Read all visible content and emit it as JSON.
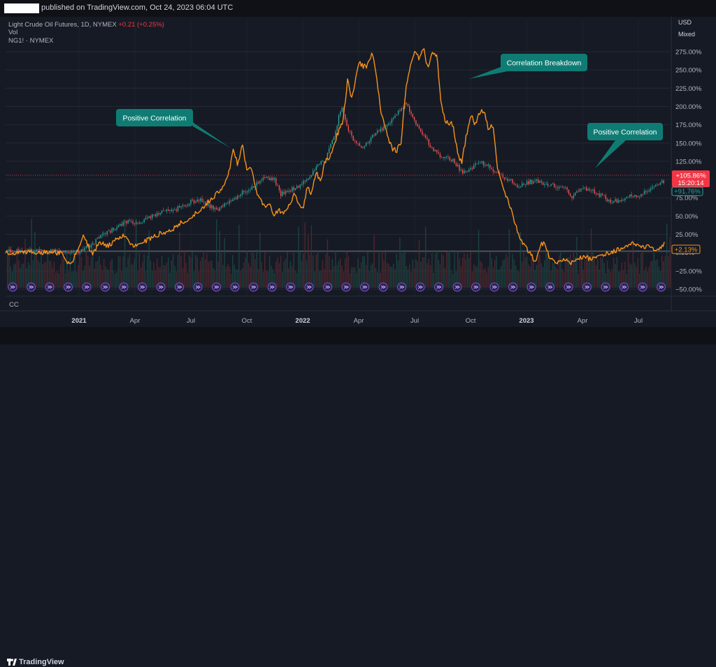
{
  "header": {
    "published_text": "published on TradingView.com, Oct 24, 2023 06:04 UTC"
  },
  "legend": {
    "symbol": "Light Crude Oil Futures, 1D, NYMEX",
    "change": "+0.21 (+0.25%)",
    "vol_label": "Vol",
    "compare_symbol": "NG1! · NYMEX"
  },
  "currency": {
    "usd": "USD",
    "mixed": "Mixed"
  },
  "cc_label": "CC",
  "footer": {
    "brand": "TradingView"
  },
  "colors": {
    "oil": "#26a69a",
    "oil_down": "#ef5350",
    "ng": "#f7931a",
    "callout": "#0f7c74",
    "price_tag": "#f23645",
    "pct_tag": "#26a69a"
  },
  "chart_data": {
    "type": "line",
    "yaxis_labels": [
      "275.00%",
      "250.00%",
      "225.00%",
      "200.00%",
      "175.00%",
      "150.00%",
      "125.00%",
      "100.00%",
      "75.00%",
      "50.00%",
      "25.00%",
      "0.00%",
      "−25.00%",
      "−50.00%"
    ],
    "x_labels": [
      "2021",
      "Apr",
      "Jul",
      "Oct",
      "2022",
      "Apr",
      "Jul",
      "Oct",
      "2023",
      "Apr",
      "Jul"
    ],
    "tags": {
      "oil_tag": "+105.86%",
      "countdown": "15:20:14",
      "green_tag": "+91.76%",
      "ng_tag": "+2.13%"
    },
    "annotations": [
      {
        "text": "Positive Correlation"
      },
      {
        "text": "Correlation Breakdown"
      },
      {
        "text": "Positive Correlation"
      }
    ],
    "series": [
      {
        "name": "Light Crude Oil Futures",
        "points": [
          [
            2020.92,
            2
          ],
          [
            2020.96,
            -2
          ],
          [
            2021.0,
            2
          ],
          [
            2021.04,
            8
          ],
          [
            2021.08,
            18
          ],
          [
            2021.12,
            26
          ],
          [
            2021.17,
            36
          ],
          [
            2021.21,
            42
          ],
          [
            2021.25,
            40
          ],
          [
            2021.29,
            44
          ],
          [
            2021.33,
            52
          ],
          [
            2021.38,
            56
          ],
          [
            2021.42,
            58
          ],
          [
            2021.46,
            64
          ],
          [
            2021.5,
            70
          ],
          [
            2021.54,
            72
          ],
          [
            2021.58,
            64
          ],
          [
            2021.62,
            60
          ],
          [
            2021.67,
            70
          ],
          [
            2021.71,
            78
          ],
          [
            2021.75,
            86
          ],
          [
            2021.79,
            94
          ],
          [
            2021.83,
            102
          ],
          [
            2021.87,
            100
          ],
          [
            2021.9,
            80
          ],
          [
            2021.94,
            86
          ],
          [
            2021.98,
            90
          ],
          [
            2022.02,
            102
          ],
          [
            2022.06,
            116
          ],
          [
            2022.1,
            130
          ],
          [
            2022.14,
            160
          ],
          [
            2022.17,
            200
          ],
          [
            2022.2,
            170
          ],
          [
            2022.23,
            150
          ],
          [
            2022.27,
            145
          ],
          [
            2022.31,
            160
          ],
          [
            2022.35,
            168
          ],
          [
            2022.38,
            175
          ],
          [
            2022.42,
            190
          ],
          [
            2022.46,
            205
          ],
          [
            2022.5,
            178
          ],
          [
            2022.54,
            160
          ],
          [
            2022.58,
            140
          ],
          [
            2022.62,
            132
          ],
          [
            2022.67,
            126
          ],
          [
            2022.71,
            110
          ],
          [
            2022.75,
            115
          ],
          [
            2022.79,
            124
          ],
          [
            2022.83,
            118
          ],
          [
            2022.87,
            108
          ],
          [
            2022.92,
            100
          ],
          [
            2022.96,
            90
          ],
          [
            2023.0,
            96
          ],
          [
            2023.04,
            98
          ],
          [
            2023.08,
            94
          ],
          [
            2023.12,
            92
          ],
          [
            2023.17,
            88
          ],
          [
            2023.2,
            76
          ],
          [
            2023.25,
            88
          ],
          [
            2023.29,
            84
          ],
          [
            2023.33,
            78
          ],
          [
            2023.38,
            70
          ],
          [
            2023.42,
            72
          ],
          [
            2023.46,
            80
          ],
          [
            2023.5,
            78
          ],
          [
            2023.54,
            86
          ],
          [
            2023.58,
            90
          ],
          [
            2023.62,
            100
          ],
          [
            2023.67,
            106
          ],
          [
            2023.71,
            98
          ],
          [
            2023.75,
            90
          ],
          [
            2023.79,
            100
          ],
          [
            2023.81,
            104
          ]
        ]
      },
      {
        "name": "NG1! · NYMEX",
        "points": [
          [
            2020.92,
            0
          ],
          [
            2020.94,
            -10
          ],
          [
            2020.96,
            -18
          ],
          [
            2020.98,
            -5
          ],
          [
            2021.0,
            8
          ],
          [
            2021.02,
            22
          ],
          [
            2021.04,
            10
          ],
          [
            2021.06,
            -2
          ],
          [
            2021.08,
            8
          ],
          [
            2021.1,
            15
          ],
          [
            2021.12,
            8
          ],
          [
            2021.15,
            12
          ],
          [
            2021.17,
            20
          ],
          [
            2021.2,
            25
          ],
          [
            2021.23,
            12
          ],
          [
            2021.26,
            8
          ],
          [
            2021.29,
            15
          ],
          [
            2021.33,
            22
          ],
          [
            2021.38,
            28
          ],
          [
            2021.42,
            32
          ],
          [
            2021.46,
            42
          ],
          [
            2021.5,
            48
          ],
          [
            2021.54,
            58
          ],
          [
            2021.58,
            70
          ],
          [
            2021.62,
            82
          ],
          [
            2021.65,
            92
          ],
          [
            2021.67,
            110
          ],
          [
            2021.69,
            140
          ],
          [
            2021.71,
            120
          ],
          [
            2021.73,
            152
          ],
          [
            2021.75,
            110
          ],
          [
            2021.77,
            118
          ],
          [
            2021.79,
            86
          ],
          [
            2021.81,
            72
          ],
          [
            2021.83,
            62
          ],
          [
            2021.85,
            70
          ],
          [
            2021.87,
            52
          ],
          [
            2021.89,
            58
          ],
          [
            2021.92,
            56
          ],
          [
            2021.94,
            66
          ],
          [
            2021.96,
            80
          ],
          [
            2021.98,
            70
          ],
          [
            2022.0,
            58
          ],
          [
            2022.02,
            92
          ],
          [
            2022.04,
            80
          ],
          [
            2022.06,
            110
          ],
          [
            2022.08,
            98
          ],
          [
            2022.1,
            125
          ],
          [
            2022.13,
            135
          ],
          [
            2022.15,
            158
          ],
          [
            2022.18,
            180
          ],
          [
            2022.2,
            235
          ],
          [
            2022.22,
            210
          ],
          [
            2022.25,
            260
          ],
          [
            2022.27,
            255
          ],
          [
            2022.29,
            255
          ],
          [
            2022.31,
            275
          ],
          [
            2022.33,
            240
          ],
          [
            2022.35,
            190
          ],
          [
            2022.38,
            158
          ],
          [
            2022.4,
            142
          ],
          [
            2022.42,
            140
          ],
          [
            2022.44,
            150
          ],
          [
            2022.46,
            222
          ],
          [
            2022.48,
            256
          ],
          [
            2022.5,
            278
          ],
          [
            2022.52,
            265
          ],
          [
            2022.54,
            280
          ],
          [
            2022.56,
            250
          ],
          [
            2022.58,
            275
          ],
          [
            2022.6,
            268
          ],
          [
            2022.62,
            200
          ],
          [
            2022.64,
            178
          ],
          [
            2022.67,
            176
          ],
          [
            2022.69,
            140
          ],
          [
            2022.71,
            122
          ],
          [
            2022.73,
            158
          ],
          [
            2022.75,
            190
          ],
          [
            2022.77,
            176
          ],
          [
            2022.79,
            190
          ],
          [
            2022.81,
            195
          ],
          [
            2022.83,
            168
          ],
          [
            2022.85,
            175
          ],
          [
            2022.87,
            115
          ],
          [
            2022.89,
            92
          ],
          [
            2022.92,
            70
          ],
          [
            2022.94,
            50
          ],
          [
            2022.96,
            28
          ],
          [
            2022.98,
            14
          ],
          [
            2023.0,
            5
          ],
          [
            2023.02,
            -3
          ],
          [
            2023.04,
            -13
          ],
          [
            2023.06,
            10
          ],
          [
            2023.08,
            14
          ],
          [
            2023.1,
            -5
          ],
          [
            2023.13,
            -12
          ],
          [
            2023.15,
            -14
          ],
          [
            2023.17,
            -10
          ],
          [
            2023.2,
            -14
          ],
          [
            2023.23,
            -8
          ],
          [
            2023.26,
            -5
          ],
          [
            2023.29,
            -10
          ],
          [
            2023.31,
            -6
          ],
          [
            2023.35,
            -3
          ],
          [
            2023.38,
            0
          ],
          [
            2023.42,
            6
          ],
          [
            2023.44,
            10
          ],
          [
            2023.46,
            12
          ],
          [
            2023.5,
            10
          ],
          [
            2023.54,
            8
          ],
          [
            2023.58,
            5
          ],
          [
            2023.62,
            12
          ],
          [
            2023.65,
            8
          ],
          [
            2023.67,
            2
          ],
          [
            2023.69,
            20
          ],
          [
            2023.71,
            12
          ],
          [
            2023.73,
            4
          ],
          [
            2023.75,
            2
          ],
          [
            2023.77,
            8
          ],
          [
            2023.79,
            4
          ],
          [
            2023.81,
            2
          ]
        ]
      }
    ],
    "grid": true
  }
}
